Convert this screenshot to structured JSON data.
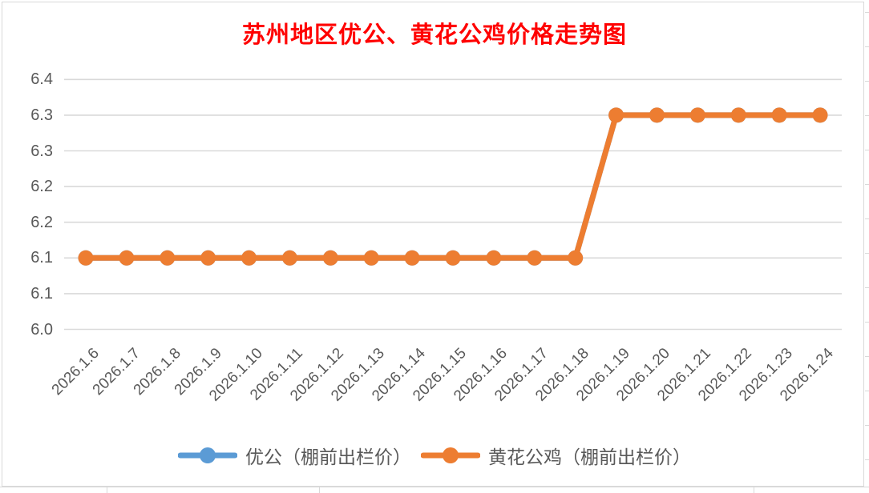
{
  "window": {
    "background": "#ffffff",
    "border_color": "#d9d9d9"
  },
  "chart_data": {
    "type": "line",
    "title": "苏州地区优公、黄花公鸡价格走势图",
    "title_color": "#ff0000",
    "categories": [
      "2026.1.6",
      "2026.1.7",
      "2026.1.8",
      "2026.1.9",
      "2026.1.10",
      "2026.1.11",
      "2026.1.12",
      "2026.1.13",
      "2026.1.14",
      "2026.1.15",
      "2026.1.16",
      "2026.1.17",
      "2026.1.18",
      "2026.1.19",
      "2026.1.20",
      "2026.1.21",
      "2026.1.22",
      "2026.1.23",
      "2026.1.24"
    ],
    "series": [
      {
        "name": "优公（棚前出栏价）",
        "color": "#5b9bd5",
        "values": [
          6.1,
          6.1,
          6.1,
          6.1,
          6.1,
          6.1,
          6.1,
          6.1,
          6.1,
          6.1,
          6.1,
          6.1,
          6.1,
          6.3,
          6.3,
          6.3,
          6.3,
          6.3,
          6.3
        ],
        "visibility": "hidden behind second series"
      },
      {
        "name": "黄花公鸡（棚前出栏价）",
        "color": "#ed7d31",
        "values": [
          6.1,
          6.1,
          6.1,
          6.1,
          6.1,
          6.1,
          6.1,
          6.1,
          6.1,
          6.1,
          6.1,
          6.1,
          6.1,
          6.3,
          6.3,
          6.3,
          6.3,
          6.3,
          6.3
        ]
      }
    ],
    "y_axis": {
      "min": 6.0,
      "max": 6.35,
      "step": 0.05,
      "tick_labels_top_to_bottom": [
        "6.4",
        "6.3",
        "6.3",
        "6.2",
        "6.2",
        "6.1",
        "6.1",
        "6.0"
      ],
      "label_color": "#595959"
    },
    "x_axis": {
      "tick_label_rotation_deg": 45,
      "label_color": "#595959"
    },
    "grid": {
      "show": true,
      "color": "#d9d9d9"
    },
    "legend": {
      "position": "bottom"
    }
  }
}
